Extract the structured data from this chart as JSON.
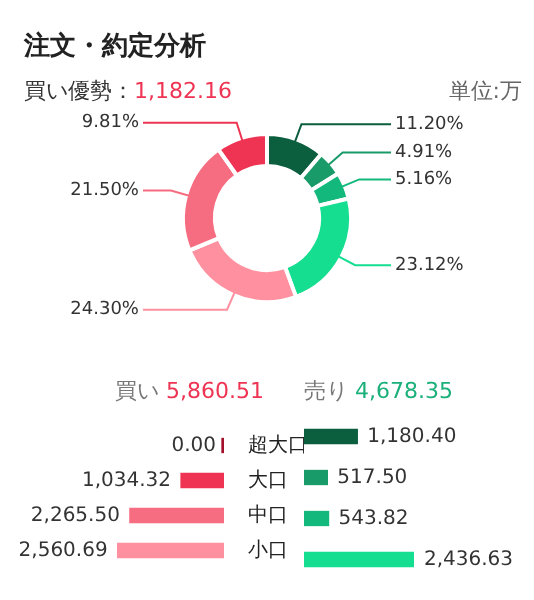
{
  "chart_data": [
    {
      "type": "donut",
      "title": "注文・約定分析",
      "subtitle": "買い優勢：1,182.16",
      "annotations": [
        "単位:万"
      ],
      "categories": [
        null,
        null,
        null,
        null,
        null,
        null,
        null
      ],
      "values": [
        11.2,
        4.91,
        5.16,
        23.12,
        24.3,
        21.5,
        9.81
      ],
      "value_labels": [
        "11.20%",
        "4.91%",
        "5.16%",
        "23.12%",
        "24.30%",
        "21.50%",
        "9.81%"
      ],
      "colors": [
        "#0b5e3e",
        "#199a69",
        "#13b97c",
        "#16de90",
        "#ff909f",
        "#f66d81",
        "#ee3452"
      ],
      "legend": false
    },
    {
      "type": "bar",
      "orientation": "horizontal",
      "annotations": [
        "買い 5,860.51"
      ],
      "categories": [
        "超大口",
        "大口",
        "中口",
        "小口"
      ],
      "values": [
        0,
        1034.32,
        2265.5,
        2560.69
      ],
      "value_labels": [
        "0.00",
        "1,034.32",
        "2,265.50",
        "2,560.69"
      ],
      "colors": [
        "#a3102c",
        "#ee3452",
        "#f66d81",
        "#ff909f"
      ],
      "xlim": [
        2600,
        0
      ],
      "tick_labels": "y",
      "legend": false
    },
    {
      "type": "bar",
      "orientation": "horizontal",
      "annotations": [
        "売り 4,678.35"
      ],
      "categories": [
        null,
        null,
        null,
        null
      ],
      "values": [
        1180.4,
        517.5,
        543.82,
        2436.63
      ],
      "value_labels": [
        "1,180.40",
        "517.50",
        "543.82",
        "2,436.63"
      ],
      "colors": [
        "#0b5e3e",
        "#199a69",
        "#13b97c",
        "#16de90"
      ],
      "legend": false
    }
  ]
}
